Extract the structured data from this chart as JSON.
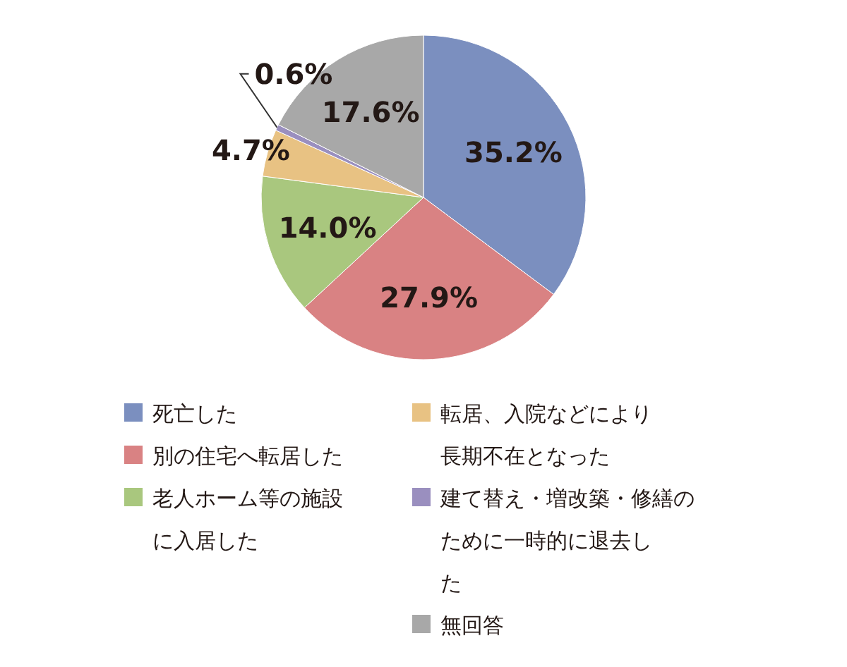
{
  "chart_data": {
    "type": "pie",
    "categories": [
      "死亡した",
      "別の住宅へ転居した",
      "老人ホーム等の施設に入居した",
      "転居、入院などにより長期不在となった",
      "建て替え・増改築・修繕のために一時的に退去した",
      "無回答"
    ],
    "values": [
      35.2,
      27.9,
      14.0,
      4.7,
      0.6,
      17.6
    ],
    "value_labels": [
      "35.2%",
      "27.9%",
      "14.0%",
      "4.7%",
      "0.6%",
      "17.6%"
    ],
    "colors": [
      "#7b8fbf",
      "#d98283",
      "#a9c77e",
      "#e8c283",
      "#9a8fbf",
      "#a8a8a8"
    ],
    "legend": "bottom"
  }
}
